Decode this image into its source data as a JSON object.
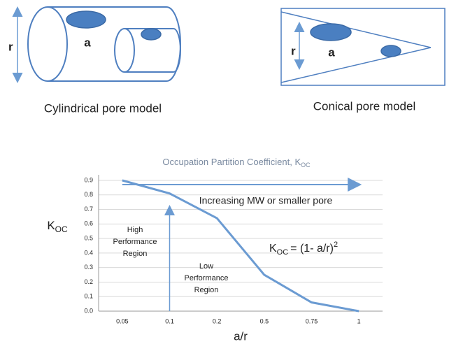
{
  "diagrams": {
    "cylindrical": {
      "r_label": "r",
      "a_label": "a",
      "caption": "Cylindrical pore model"
    },
    "conical": {
      "r_label": "r",
      "a_label": "a",
      "caption": "Conical pore model"
    }
  },
  "chart_data": {
    "type": "line",
    "title": "Occupation Partition Coefficient, K",
    "title_sub": "OC",
    "y_label": "K",
    "y_label_sub": "OC",
    "x_label": "a/r",
    "categories": [
      "0.05",
      "0.1",
      "0.2",
      "0.5",
      "0.75",
      "1"
    ],
    "values": [
      0.9,
      0.81,
      0.64,
      0.25,
      0.06,
      0.0
    ],
    "color": "#6b9bd2",
    "ylim": [
      0,
      0.9
    ],
    "yticks": [
      {
        "value": 0,
        "label": "0.0"
      },
      0.1,
      0.2,
      0.3,
      0.4,
      0.5,
      0.6,
      0.7,
      0.8,
      0.9
    ],
    "grid": true,
    "annotations": {
      "trend": "Increasing MW or smaller pore",
      "high_region": [
        "High",
        "Performance",
        "Region"
      ],
      "low_region": [
        "Low",
        "Performance",
        "Region"
      ],
      "formula": {
        "k": "K",
        "sub": "OC",
        "rest": "= (1- a/r)",
        "sup": "2"
      }
    }
  }
}
